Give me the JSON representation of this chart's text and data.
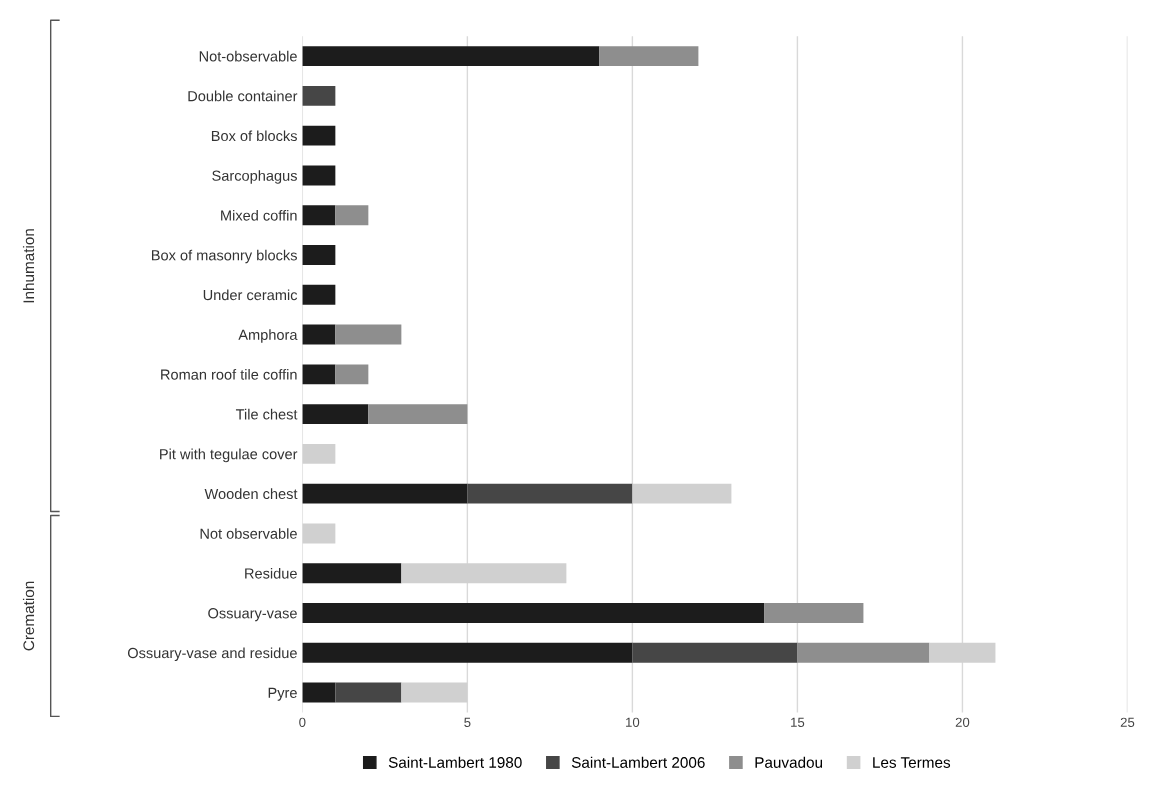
{
  "chart_data": {
    "type": "bar",
    "orientation": "horizontal",
    "stacked": true,
    "categories": [
      "Not-observable",
      "Double container",
      "Box of blocks",
      "Sarcophagus",
      "Mixed coffin",
      "Box of masonry blocks",
      "Under ceramic",
      "Amphora",
      "Roman roof tile coffin",
      "Tile chest",
      "Pit with tegulae cover",
      "Wooden chest",
      "Not observable",
      "Residue",
      "Ossuary-vase",
      "Ossuary-vase and residue",
      "Pyre"
    ],
    "series": [
      {
        "name": "Saint-Lambert 1980",
        "color": "#1c1c1c",
        "values": [
          9,
          0,
          1,
          1,
          1,
          1,
          1,
          1,
          1,
          2,
          0,
          5,
          0,
          3,
          14,
          10,
          1
        ]
      },
      {
        "name": "Saint-Lambert 2006",
        "color": "#464646",
        "values": [
          0,
          1,
          0,
          0,
          0,
          0,
          0,
          0,
          0,
          0,
          0,
          5,
          0,
          0,
          0,
          5,
          2
        ]
      },
      {
        "name": "Pauvadou",
        "color": "#8e8e8e",
        "values": [
          3,
          0,
          0,
          0,
          1,
          0,
          0,
          2,
          1,
          3,
          0,
          0,
          0,
          0,
          3,
          4,
          0
        ]
      },
      {
        "name": "Les Termes",
        "color": "#d0d0d0",
        "values": [
          0,
          0,
          0,
          0,
          0,
          0,
          0,
          0,
          0,
          0,
          1,
          3,
          1,
          5,
          0,
          2,
          2
        ]
      }
    ],
    "xlim": [
      0,
      25
    ],
    "xticks": [
      0,
      5,
      10,
      15,
      20,
      25
    ],
    "grid": "x",
    "legend": "bottom",
    "annotations": [
      "Inhumation",
      "Cremation"
    ]
  }
}
